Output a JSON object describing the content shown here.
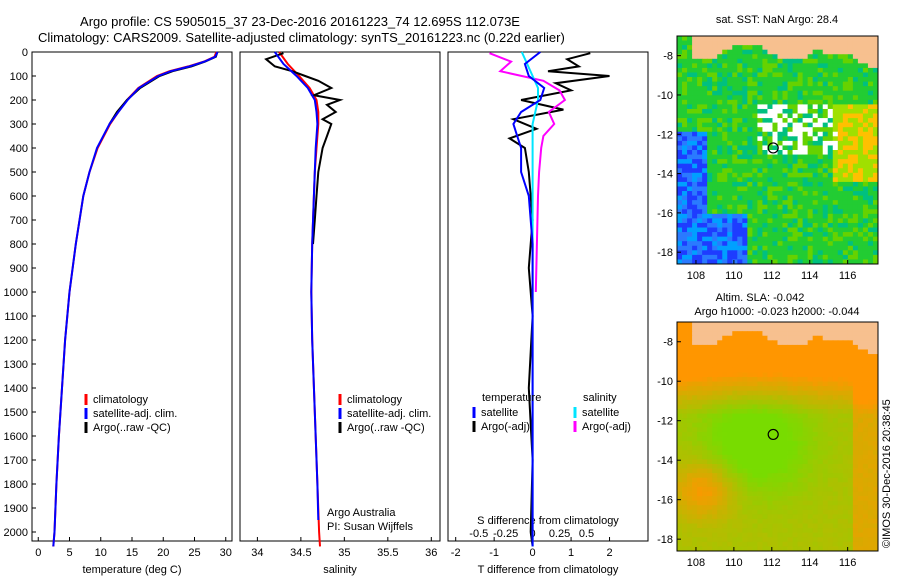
{
  "title_line1": "Argo profile: CS 5905015_37 23-Dec-2016 20161223_74 12.695S 112.073E",
  "title_line2": "Climatology: CARS2009. Satellite-adjusted climatology: synTS_20161223.nc (0.22d earlier)",
  "sidebar_text": "©IMOS 30-Dec-2016 20:38:45",
  "colors": {
    "climatology": "#ff0000",
    "satellite": "#0000ff",
    "argo": "#000000",
    "sat_s": "#00e5ff",
    "argo_s": "#ff00ff",
    "land": "#f7c08f"
  },
  "chart_data": [
    {
      "type": "line",
      "id": "temperature",
      "xlabel": "temperature (deg C)",
      "xlim": [
        -1,
        31
      ],
      "ylim": [
        2100,
        0
      ],
      "xticks": [
        "0",
        "5",
        "10",
        "15",
        "20",
        "25",
        "30"
      ],
      "xtick_values": [
        0,
        5,
        10,
        15,
        20,
        25,
        30
      ],
      "yticks": [
        "0",
        "100",
        "200",
        "300",
        "400",
        "500",
        "600",
        "700",
        "800",
        "900",
        "1000",
        "1100",
        "1200",
        "1300",
        "1400",
        "1500",
        "1600",
        "1700",
        "1800",
        "1900",
        "2000"
      ],
      "ytick_values": [
        0,
        100,
        200,
        300,
        400,
        500,
        600,
        700,
        800,
        900,
        1000,
        1100,
        1200,
        1300,
        1400,
        1500,
        1600,
        1700,
        1800,
        1900,
        2000
      ],
      "legend": [
        "climatology",
        "satellite-adj. clim.",
        "Argo(..raw -QC)"
      ],
      "series": [
        {
          "name": "climatology",
          "depth": [
            0,
            20,
            40,
            60,
            80,
            100,
            150,
            200,
            250,
            300,
            400,
            500,
            600,
            800,
            1000,
            1200,
            1400,
            1600,
            1800,
            2000,
            2060
          ],
          "values": [
            28.5,
            28.2,
            26.5,
            24.0,
            21.0,
            19.0,
            16.0,
            14.2,
            12.8,
            11.5,
            9.5,
            8.2,
            7.2,
            6.0,
            5.0,
            4.3,
            3.8,
            3.3,
            2.9,
            2.6,
            2.4
          ]
        },
        {
          "name": "satellite-adj. clim.",
          "depth": [
            0,
            20,
            40,
            60,
            80,
            100,
            150,
            200,
            250,
            300,
            400,
            500,
            600,
            800,
            1000,
            1200,
            1400,
            1600,
            1800,
            2000,
            2060
          ],
          "values": [
            28.7,
            28.3,
            26.6,
            24.2,
            21.2,
            19.2,
            16.1,
            14.3,
            12.8,
            11.4,
            9.4,
            8.2,
            7.2,
            6.0,
            5.0,
            4.3,
            3.8,
            3.3,
            2.9,
            2.6,
            2.4
          ]
        },
        {
          "name": "Argo(..raw -QC)",
          "depth": [
            5,
            20,
            40,
            60,
            80,
            100,
            150,
            200,
            250,
            300
          ],
          "values": [
            28.6,
            28.4,
            26.7,
            24.5,
            21.5,
            19.4,
            16.3,
            14.2,
            12.6,
            11.4
          ]
        }
      ]
    },
    {
      "type": "line",
      "id": "salinity",
      "xlabel": "salinity",
      "xlim": [
        33.8,
        36.1
      ],
      "ylim": [
        2100,
        0
      ],
      "xticks": [
        "34",
        "34.5",
        "35",
        "35.5",
        "36"
      ],
      "xtick_values": [
        34,
        34.5,
        35,
        35.5,
        36
      ],
      "legend": [
        "climatology",
        "satellite-adj. clim.",
        "Argo(..raw -QC)"
      ],
      "annotation": [
        "Argo Australia",
        "PI: Susan Wijffels"
      ],
      "series": [
        {
          "name": "climatology",
          "depth": [
            0,
            50,
            100,
            150,
            200,
            250,
            300,
            400,
            500,
            600,
            800,
            1000,
            1200,
            1500,
            1800,
            2000,
            2060
          ],
          "values": [
            34.25,
            34.35,
            34.48,
            34.6,
            34.68,
            34.7,
            34.7,
            34.68,
            34.66,
            34.65,
            34.63,
            34.62,
            34.63,
            34.66,
            34.69,
            34.71,
            34.72
          ]
        },
        {
          "name": "satellite-adj. clim.",
          "depth": [
            0,
            50,
            100,
            150,
            200,
            250,
            300,
            400,
            500,
            600,
            800,
            1000,
            1200,
            1500,
            1800,
            1950
          ],
          "values": [
            34.2,
            34.3,
            34.45,
            34.58,
            34.66,
            34.68,
            34.69,
            34.67,
            34.66,
            34.65,
            34.63,
            34.62,
            34.63,
            34.66,
            34.69,
            34.7
          ]
        },
        {
          "name": "Argo(..raw -QC)",
          "depth": [
            5,
            30,
            60,
            80,
            100,
            120,
            150,
            180,
            200,
            220,
            250,
            280,
            300,
            350,
            400,
            500,
            600,
            700,
            800
          ],
          "values": [
            34.3,
            34.1,
            34.2,
            34.4,
            34.55,
            34.7,
            34.85,
            34.65,
            34.95,
            34.8,
            34.9,
            34.75,
            34.85,
            34.8,
            34.75,
            34.7,
            34.68,
            34.66,
            34.64
          ]
        }
      ]
    },
    {
      "type": "line",
      "id": "difference",
      "xlabel": "T difference from climatology",
      "xlabel_top": "S difference from climatology",
      "xlim": [
        -2.2,
        3.0
      ],
      "ylim": [
        2100,
        0
      ],
      "xticks": [
        "-2",
        "-1",
        "0",
        "1",
        "2"
      ],
      "xtick_values": [
        -2,
        -1,
        0,
        1,
        2
      ],
      "sticks": [
        "-0.5",
        "-0.25",
        "0",
        "0.25",
        "0.5"
      ],
      "stick_values": [
        -0.5,
        -0.25,
        0,
        0.25,
        0.5
      ],
      "legend_temperature": {
        "title": "temperature",
        "items": [
          "satellite",
          "Argo(-adj)"
        ]
      },
      "legend_salinity": {
        "title": "salinity",
        "items": [
          "satellite",
          "Argo(-adj)"
        ]
      },
      "series": [
        {
          "name": "T satellite",
          "depth": [
            0,
            50,
            100,
            150,
            200,
            250,
            300,
            350,
            400,
            500,
            600,
            800,
            1000,
            1500,
            2000,
            2060
          ],
          "values": [
            0.2,
            -0.2,
            -0.1,
            0.3,
            0.2,
            -0.3,
            -0.5,
            -0.4,
            -0.3,
            -0.3,
            -0.1,
            0.0,
            0.0,
            0.0,
            0.0,
            0.0
          ]
        },
        {
          "name": "T Argo(-adj)",
          "depth": [
            5,
            30,
            60,
            80,
            100,
            130,
            160,
            200,
            240,
            280,
            320,
            360,
            400,
            500,
            700,
            900,
            1100,
            1400,
            1700,
            2000,
            2060
          ],
          "values": [
            1.5,
            0.9,
            1.2,
            0.4,
            2.0,
            0.6,
            1.0,
            -0.3,
            0.8,
            -0.5,
            0.1,
            -0.6,
            -0.2,
            -0.1,
            0.0,
            -0.1,
            0.0,
            -0.1,
            0.0,
            -0.05,
            0.0
          ]
        },
        {
          "name": "S satellite",
          "depth": [
            0,
            50,
            100,
            150,
            200,
            300,
            400,
            500,
            700,
            900,
            1200,
            1500,
            2000,
            2060
          ],
          "values": [
            -0.1,
            -0.05,
            0.0,
            0.05,
            0.05,
            0.0,
            0.0,
            0.0,
            0.0,
            0.0,
            0.0,
            0.0,
            0.0,
            0.0
          ]
        },
        {
          "name": "S Argo(-adj)",
          "depth": [
            5,
            40,
            80,
            120,
            160,
            200,
            250,
            300,
            350,
            400,
            500,
            600,
            800,
            1000
          ],
          "values": [
            -0.4,
            -0.2,
            -0.3,
            0.1,
            0.25,
            0.3,
            0.15,
            0.2,
            0.1,
            0.08,
            0.06,
            0.05,
            0.04,
            0.03
          ]
        }
      ]
    },
    {
      "type": "heatmap",
      "id": "sst_map",
      "title": "sat. SST: NaN Argo: 28.4",
      "xticks": [
        "108",
        "110",
        "112",
        "114",
        "116"
      ],
      "yticks": [
        "-8",
        "-10",
        "-12",
        "-14",
        "-16",
        "-18"
      ],
      "marker": {
        "lon": 112.073,
        "lat": -12.695
      }
    },
    {
      "type": "heatmap",
      "id": "sla_map",
      "title_line1": "Altim. SLA: -0.042",
      "title_line2": "Argo h1000: -0.023 h2000: -0.044",
      "xticks": [
        "108",
        "110",
        "112",
        "114",
        "116"
      ],
      "yticks": [
        "-8",
        "-10",
        "-12",
        "-14",
        "-16",
        "-18"
      ],
      "marker": {
        "lon": 112.073,
        "lat": -12.695
      }
    }
  ]
}
